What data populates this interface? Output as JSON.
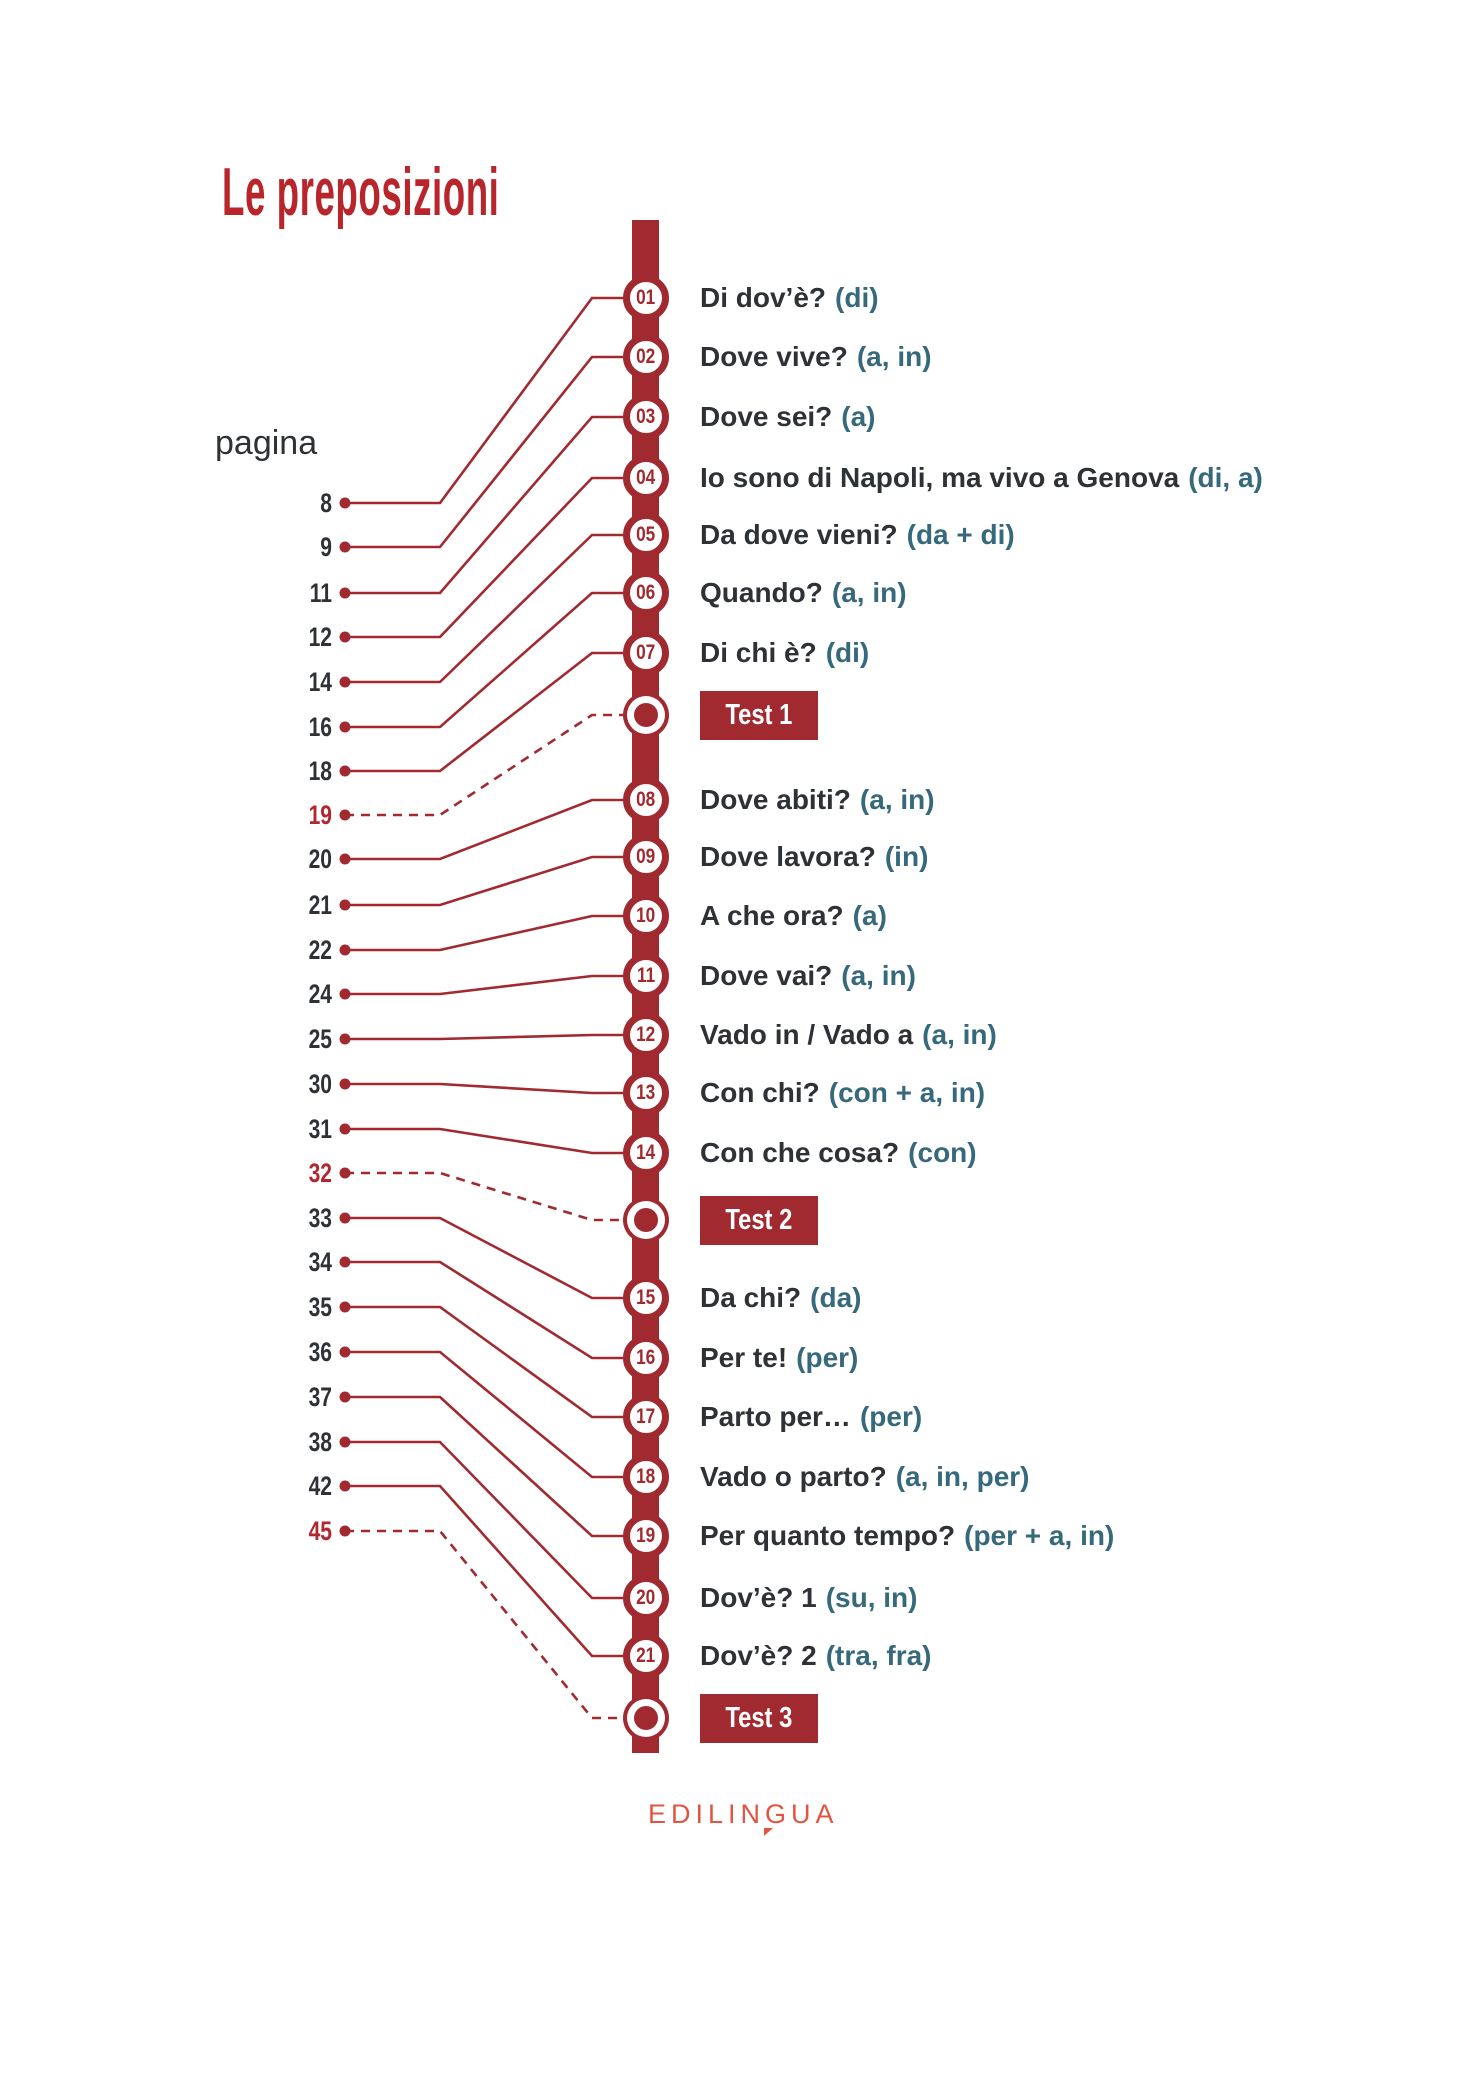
{
  "page_title": "Le preposizioni",
  "pagina_label": "pagina",
  "footer_logo": "EDILINGUA",
  "colors": {
    "bar_red": "#a12a31",
    "title_red": "#b8262c",
    "page_red": "#b2272f",
    "teal": "#35697b",
    "ink": "#2e3236",
    "logo_orange": "#e25440"
  },
  "items": [
    {
      "kind": "chapter",
      "num": "01",
      "title": "Di dov’è?",
      "preps": "(di)",
      "page": "8"
    },
    {
      "kind": "chapter",
      "num": "02",
      "title": "Dove vive?",
      "preps": "(a, in)",
      "page": "9"
    },
    {
      "kind": "chapter",
      "num": "03",
      "title": "Dove sei?",
      "preps": "(a)",
      "page": "11"
    },
    {
      "kind": "chapter",
      "num": "04",
      "title": "Io sono di Napoli, ma vivo a Genova",
      "preps": "(di, a)",
      "page": "12"
    },
    {
      "kind": "chapter",
      "num": "05",
      "title": "Da dove vieni?",
      "preps": "(da + di)",
      "page": "14"
    },
    {
      "kind": "chapter",
      "num": "06",
      "title": "Quando?",
      "preps": "(a, in)",
      "page": "16"
    },
    {
      "kind": "chapter",
      "num": "07",
      "title": "Di chi è?",
      "preps": "(di)",
      "page": "18"
    },
    {
      "kind": "test",
      "label": "Test 1",
      "page": "19"
    },
    {
      "kind": "chapter",
      "num": "08",
      "title": "Dove abiti?",
      "preps": "(a, in)",
      "page": "20"
    },
    {
      "kind": "chapter",
      "num": "09",
      "title": "Dove lavora?",
      "preps": "(in)",
      "page": "21"
    },
    {
      "kind": "chapter",
      "num": "10",
      "title": "A che ora?",
      "preps": "(a)",
      "page": "22"
    },
    {
      "kind": "chapter",
      "num": "11",
      "title": "Dove vai?",
      "preps": "(a, in)",
      "page": "24"
    },
    {
      "kind": "chapter",
      "num": "12",
      "title": "Vado in / Vado a",
      "preps": "(a, in)",
      "page": "25"
    },
    {
      "kind": "chapter",
      "num": "13",
      "title": "Con chi?",
      "preps": "(con + a, in)",
      "page": "30"
    },
    {
      "kind": "chapter",
      "num": "14",
      "title": "Con che cosa?",
      "preps": "(con)",
      "page": "31"
    },
    {
      "kind": "test",
      "label": "Test 2",
      "page": "32"
    },
    {
      "kind": "chapter",
      "num": "15",
      "title": "Da chi?",
      "preps": "(da)",
      "page": "33"
    },
    {
      "kind": "chapter",
      "num": "16",
      "title": "Per te!",
      "preps": "(per)",
      "page": "34"
    },
    {
      "kind": "chapter",
      "num": "17",
      "title": "Parto per…",
      "preps": "(per)",
      "page": "35"
    },
    {
      "kind": "chapter",
      "num": "18",
      "title": "Vado o parto?",
      "preps": "(a, in, per)",
      "page": "36"
    },
    {
      "kind": "chapter",
      "num": "19",
      "title": "Per quanto tempo?",
      "preps": "(per + a, in)",
      "page": "37"
    },
    {
      "kind": "chapter",
      "num": "20",
      "title": "Dov’è? 1",
      "preps": "(su, in)",
      "page": "38"
    },
    {
      "kind": "chapter",
      "num": "21",
      "title": "Dov’è? 2",
      "preps": "(tra, fra)",
      "page": "42"
    },
    {
      "kind": "test",
      "label": "Test 3",
      "page": "45"
    }
  ]
}
